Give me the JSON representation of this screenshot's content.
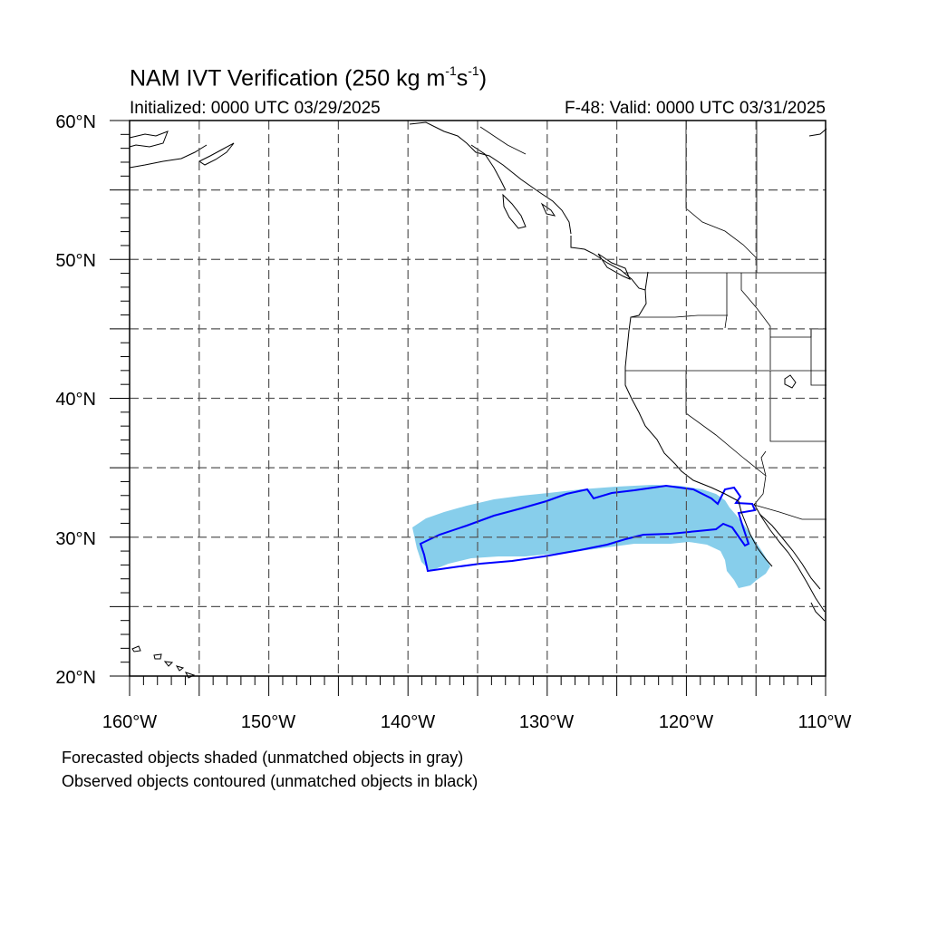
{
  "title": {
    "main": "NAM IVT Verification (250 kg m",
    "exp1": "-1",
    "mid": "s",
    "exp2": "-1",
    "tail": ")"
  },
  "subtitle": {
    "initialized": "Initialized: 0000 UTC 03/29/2025",
    "valid": "F-48: Valid: 0000 UTC 03/31/2025"
  },
  "axes": {
    "lat_labels": [
      "60°N",
      "50°N",
      "40°N",
      "30°N",
      "20°N"
    ],
    "lon_labels": [
      "160°W",
      "150°W",
      "140°W",
      "130°W",
      "120°W",
      "110°W"
    ],
    "lat_range": [
      20,
      60
    ],
    "lon_range": [
      -160,
      -110
    ],
    "grid_spacing_deg": 5,
    "grid": true
  },
  "legend_notes": {
    "line1": "Forecasted objects shaded (unmatched objects in gray)",
    "line2": "Observed objects contoured (unmatched objects in black)"
  },
  "colors": {
    "forecast_fill": "#87ceeb",
    "observed_contour": "#0000ff",
    "coastline": "#000000",
    "grid": "#555555"
  }
}
